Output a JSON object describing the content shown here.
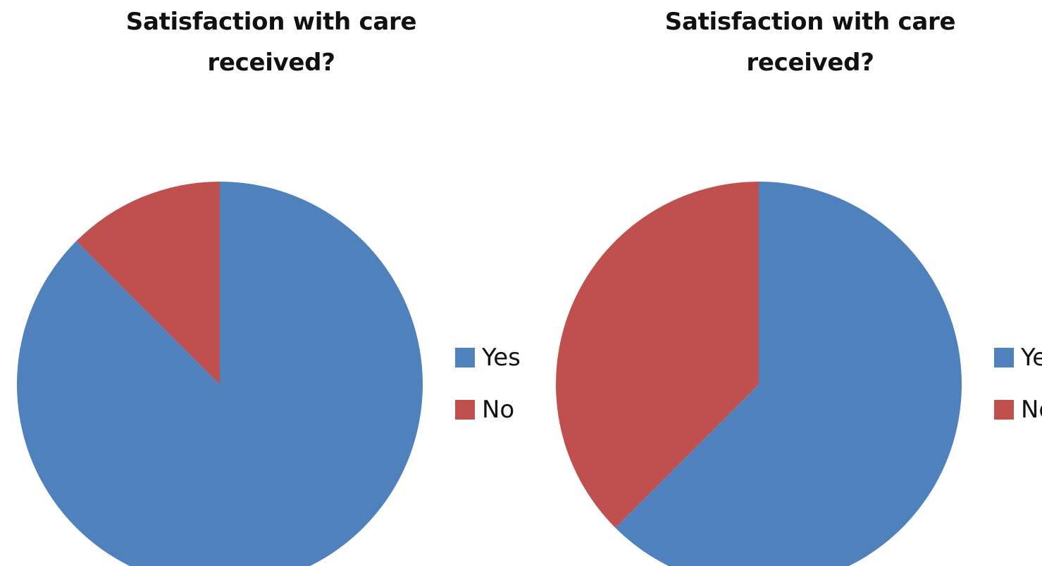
{
  "chart_data": [
    {
      "type": "pie",
      "title": "Satisfaction with care received?",
      "categories": [
        "Yes",
        "No"
      ],
      "values": [
        87.5,
        12.5
      ],
      "colors": [
        "#4f81bd",
        "#c0504d"
      ],
      "legend": "right"
    },
    {
      "type": "pie",
      "title": "Satisfaction with care received?",
      "categories": [
        "Yes",
        "No"
      ],
      "values": [
        62.5,
        37.5
      ],
      "colors": [
        "#4f81bd",
        "#c0504d"
      ],
      "legend": "right"
    }
  ]
}
